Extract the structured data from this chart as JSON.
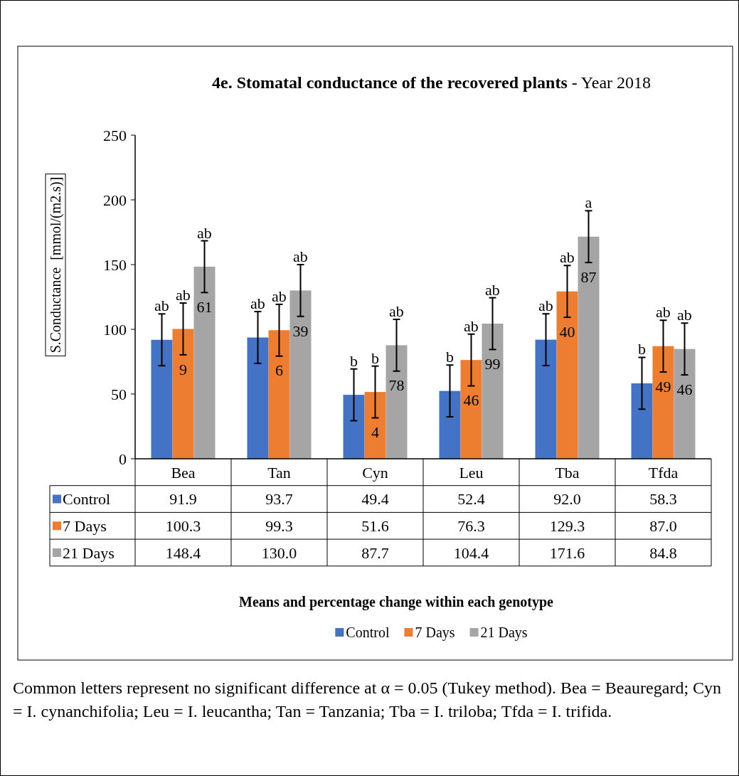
{
  "chart_data": {
    "type": "bar",
    "title": "4e. Stomatal conductance of the recovered plants",
    "subtitle": "- Year 2018",
    "ylabel": "S.Conductance  [mmol/(m2.s)]",
    "categories": [
      "Bea",
      "Tan",
      "Cyn",
      "Leu",
      "Tba",
      "Tfda"
    ],
    "series": [
      {
        "name": "Control",
        "color": "#4472c4",
        "values": [
          91.9,
          93.7,
          49.4,
          52.4,
          92.0,
          58.3
        ],
        "errors": [
          20,
          20,
          20,
          20,
          20,
          20
        ],
        "value_labels": [
          "91.9",
          "93.7",
          "49.4",
          "52.4",
          "92.0",
          "58.3"
        ]
      },
      {
        "name": "7 Days",
        "color": "#ed7d31",
        "values": [
          100.3,
          99.3,
          51.6,
          76.3,
          129.3,
          87.0
        ],
        "errors": [
          20,
          20,
          20,
          20,
          20,
          20
        ],
        "value_labels": [
          "100.3",
          "99.3",
          "51.6",
          "76.3",
          "129.3",
          "87.0"
        ]
      },
      {
        "name": "21 Days",
        "color": "#a5a5a5",
        "values": [
          148.4,
          130.0,
          87.7,
          104.4,
          171.6,
          84.8
        ],
        "errors": [
          20,
          20,
          20,
          20,
          20,
          20
        ],
        "value_labels": [
          "148.4",
          "130.0",
          "87.7",
          "104.4",
          "171.6",
          "84.8"
        ]
      }
    ],
    "ylim": [
      0,
      250
    ],
    "yticks": [
      0,
      50,
      100,
      150,
      200,
      250
    ],
    "grid": false,
    "legend": "bottom",
    "data_labels": true,
    "annotations": [
      "ab",
      "ab",
      "ab",
      "ab",
      "ab",
      "ab",
      "b",
      "b",
      "ab",
      "b",
      "ab",
      "ab",
      "ab",
      "ab",
      "a",
      "b",
      "ab",
      "ab",
      "9",
      "6",
      "4",
      "46",
      "40",
      "49",
      "61",
      "39",
      "78",
      "99",
      "87",
      "46",
      "Means and percentage change within each genotype",
      "Common letters represent no significant difference at α = 0.05 (Tukey method). Bea = Beauregard; Cyn = I. cynanchifolia; Leu = I. leucantha; Tan = Tanzania; Tba = I. triloba; Tfda = I. trifida."
    ]
  }
}
